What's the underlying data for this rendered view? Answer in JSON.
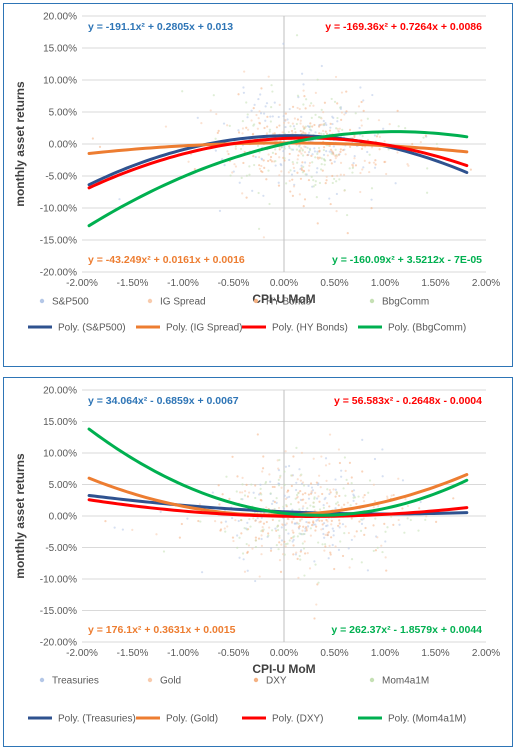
{
  "chart_data": [
    {
      "type": "scatter",
      "xlabel": "CPI-U MoM",
      "ylabel": "monthly asset returns",
      "xlim": [
        -0.02,
        0.02
      ],
      "ylim": [
        -0.2,
        0.2
      ],
      "x_ticks": [
        "-2.00%",
        "-1.50%",
        "-1.00%",
        "-0.50%",
        "0.00%",
        "0.50%",
        "1.00%",
        "1.50%",
        "2.00%"
      ],
      "y_ticks": [
        "20.00%",
        "15.00%",
        "10.00%",
        "5.00%",
        "0.00%",
        "-5.00%",
        "-10.00%",
        "-15.00%",
        "-20.00%"
      ],
      "grid": "horizontal",
      "legend_position": "bottom",
      "series": [
        {
          "name": "S&P500",
          "kind": "scatter",
          "color": "#b4c7e7"
        },
        {
          "name": "IG Spread",
          "kind": "scatter",
          "color": "#f8cbad"
        },
        {
          "name": "HY Bonds",
          "kind": "scatter",
          "color": "#f4b183"
        },
        {
          "name": "BbgComm",
          "kind": "scatter",
          "color": "#c5e0b4"
        },
        {
          "name": "Poly. (S&P500)",
          "kind": "trend",
          "color": "#2f528f",
          "coefficients": [
            -191.1,
            0.2805,
            0.013
          ]
        },
        {
          "name": "Poly. (IG Spread)",
          "kind": "trend",
          "color": "#ed7d31",
          "coefficients": [
            -43.249,
            0.0161,
            0.0016
          ]
        },
        {
          "name": "Poly. (HY Bonds)",
          "kind": "trend",
          "color": "#ff0000",
          "coefficients": [
            -169.36,
            0.7264,
            0.0086
          ]
        },
        {
          "name": "Poly. (BbgComm)",
          "kind": "trend",
          "color": "#00b050",
          "coefficients": [
            -160.09,
            3.5212,
            -7e-05
          ]
        }
      ],
      "trend_x_range": [
        -0.0193,
        0.0181
      ],
      "equations": [
        {
          "text": "y = -191.1x² + 0.2805x + 0.013",
          "color": "#2e75b6",
          "corner": "top-left"
        },
        {
          "text": "y = -169.36x² + 0.7264x + 0.0086",
          "color": "#ff0000",
          "corner": "top-right"
        },
        {
          "text": "y = -43.249x² + 0.0161x + 0.0016",
          "color": "#ed7d31",
          "corner": "bottom-left"
        },
        {
          "text": "y = -160.09x² + 3.5212x - 7E-05",
          "color": "#00b050",
          "corner": "bottom-right"
        }
      ]
    },
    {
      "type": "scatter",
      "xlabel": "CPI-U MoM",
      "ylabel": "monthly asset returns",
      "xlim": [
        -0.02,
        0.02
      ],
      "ylim": [
        -0.2,
        0.2
      ],
      "x_ticks": [
        "-2.00%",
        "-1.50%",
        "-1.00%",
        "-0.50%",
        "0.00%",
        "0.50%",
        "1.00%",
        "1.50%",
        "2.00%"
      ],
      "y_ticks": [
        "20.00%",
        "15.00%",
        "10.00%",
        "5.00%",
        "0.00%",
        "-5.00%",
        "-10.00%",
        "-15.00%",
        "-20.00%"
      ],
      "grid": "horizontal",
      "legend_position": "bottom",
      "series": [
        {
          "name": "Treasuries",
          "kind": "scatter",
          "color": "#b4c7e7"
        },
        {
          "name": "Gold",
          "kind": "scatter",
          "color": "#f8cbad"
        },
        {
          "name": "DXY",
          "kind": "scatter",
          "color": "#f4b183"
        },
        {
          "name": "Mom4a1M",
          "kind": "scatter",
          "color": "#c5e0b4"
        },
        {
          "name": "Poly. (Treasuries)",
          "kind": "trend",
          "color": "#2f528f",
          "coefficients": [
            34.064,
            -0.6859,
            0.0067
          ]
        },
        {
          "name": "Poly. (Gold)",
          "kind": "trend",
          "color": "#ed7d31",
          "coefficients": [
            176.1,
            0.3631,
            0.0015
          ]
        },
        {
          "name": "Poly. (DXY)",
          "kind": "trend",
          "color": "#ff0000",
          "coefficients": [
            56.583,
            -0.2648,
            -0.0004
          ]
        },
        {
          "name": "Poly. (Mom4a1M)",
          "kind": "trend",
          "color": "#00b050",
          "coefficients": [
            262.37,
            -1.8579,
            0.0044
          ]
        }
      ],
      "trend_x_range": [
        -0.0193,
        0.0181
      ],
      "equations": [
        {
          "text": "y = 34.064x² - 0.6859x + 0.0067",
          "color": "#2e75b6",
          "corner": "top-left"
        },
        {
          "text": "y = 56.583x² - 0.2648x - 0.0004",
          "color": "#ff0000",
          "corner": "top-right"
        },
        {
          "text": "y = 176.1x² + 0.3631x + 0.0015",
          "color": "#ed7d31",
          "corner": "bottom-left"
        },
        {
          "text": "y = 262.37x² - 1.8579x + 0.0044",
          "color": "#00b050",
          "corner": "bottom-right"
        }
      ]
    }
  ]
}
